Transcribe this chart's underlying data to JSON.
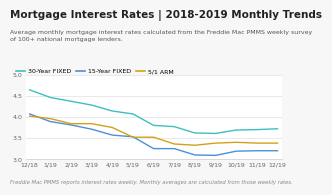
{
  "title": "Mortgage Interest Rates | 2018-2019 Monthly Trends",
  "subtitle": "Average monthly mortgage interest rates calculated from the Freddie Mac PMMS weekly survey\nof 100+ national mortgage lenders.",
  "footnote": "Freddie Mac PMMS reports interest rates weekly. Monthly averages are calculated from those weekly rates.",
  "x_labels": [
    "12/18",
    "1/19",
    "2/19",
    "3/19",
    "4/19",
    "5/19",
    "6/19",
    "7/19",
    "8/19",
    "9/19",
    "10/19",
    "11/19",
    "12/19"
  ],
  "series_30yr": [
    4.64,
    4.46,
    4.37,
    4.28,
    4.14,
    4.07,
    3.8,
    3.77,
    3.62,
    3.61,
    3.69,
    3.7,
    3.72
  ],
  "series_15yr": [
    4.07,
    3.89,
    3.81,
    3.71,
    3.57,
    3.53,
    3.25,
    3.25,
    3.1,
    3.09,
    3.19,
    3.2,
    3.2
  ],
  "series_arm": [
    4.02,
    3.96,
    3.84,
    3.84,
    3.75,
    3.52,
    3.52,
    3.36,
    3.33,
    3.38,
    3.4,
    3.38,
    3.38
  ],
  "color_30yr": "#3dbfbf",
  "color_15yr": "#4a90d9",
  "color_arm": "#d4a017",
  "ylim": [
    3.0,
    5.0
  ],
  "yticks": [
    3.0,
    3.5,
    4.0,
    4.5,
    5.0
  ],
  "bg_color": "#f7f7f7",
  "plot_bg": "#ffffff",
  "title_fontsize": 7.5,
  "subtitle_fontsize": 4.5,
  "tick_fontsize": 4.5,
  "legend_fontsize": 4.5,
  "footnote_fontsize": 3.8
}
